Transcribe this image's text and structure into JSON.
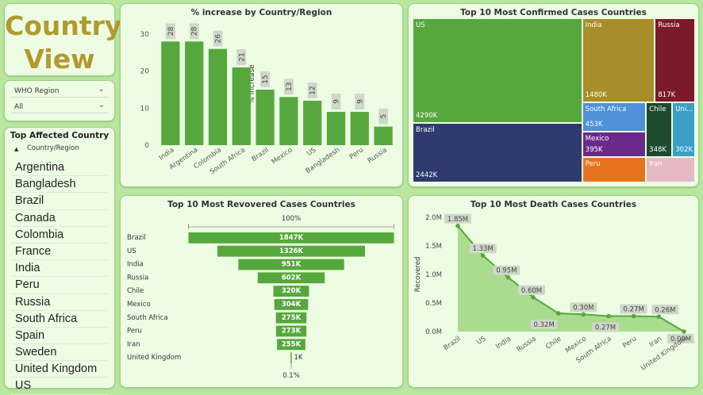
{
  "page_title": [
    "Country",
    "View"
  ],
  "filter": {
    "label": "WHO Region",
    "value": "All"
  },
  "country_list": {
    "title": "Top Affected Country",
    "column": "Country/Region",
    "items": [
      "Argentina",
      "Bangladesh",
      "Brazil",
      "Canada",
      "Colombia",
      "France",
      "India",
      "Peru",
      "Russia",
      "South Africa",
      "Spain",
      "Sweden",
      "United Kingdom",
      "US"
    ]
  },
  "colors": {
    "background": "#b9e7a0",
    "card": "#edfde4",
    "bar_green": "#56a83c",
    "title_gold": "#b39a2e",
    "data_label_bg": "#cfd8c8"
  },
  "chart_data": [
    {
      "type": "bar",
      "title": "% increase by Country/Region",
      "ylabel": "% increase",
      "categories": [
        "India",
        "Argentina",
        "Colombia",
        "South Africa",
        "Brazil",
        "Mexico",
        "US",
        "Bangladesh",
        "Peru",
        "Russia"
      ],
      "values": [
        28,
        28,
        26,
        21,
        15,
        13,
        12,
        9,
        9,
        5
      ],
      "ylim": [
        0,
        33
      ],
      "yticks": [
        0,
        10,
        20,
        30
      ],
      "grid": false
    },
    {
      "type": "treemap",
      "title": "Top 10 Most Confirmed Cases Countries",
      "cells": [
        {
          "name": "US",
          "label": "4290K",
          "value": 4290,
          "color": "#56a83c"
        },
        {
          "name": "Brazil",
          "label": "2442K",
          "value": 2442,
          "color": "#2f3a6e"
        },
        {
          "name": "India",
          "label": "1480K",
          "value": 1480,
          "color": "#a88e28"
        },
        {
          "name": "Russia",
          "label": "817K",
          "value": 817,
          "color": "#7a1a2a"
        },
        {
          "name": "South Africa",
          "label": "453K",
          "value": 453,
          "color": "#4f90d6"
        },
        {
          "name": "Mexico",
          "label": "395K",
          "value": 395,
          "color": "#6a2a8a"
        },
        {
          "name": "Peru",
          "label": "",
          "value": 389,
          "color": "#e8731e"
        },
        {
          "name": "Chile",
          "label": "348K",
          "value": 348,
          "color": "#1f4a2f"
        },
        {
          "name": "Uni...",
          "label": "302K",
          "value": 302,
          "color": "#3b9fc4"
        },
        {
          "name": "Iran",
          "label": "",
          "value": 300,
          "color": "#e6b9c4"
        }
      ]
    },
    {
      "type": "funnel",
      "title": "Top 10 Most Revovered Cases Countries",
      "top_label": "100%",
      "bottom_label": "0.1%",
      "categories": [
        "Brazil",
        "US",
        "India",
        "Russia",
        "Chile",
        "Mexico",
        "South Africa",
        "Peru",
        "Iran",
        "United Kingdom"
      ],
      "values": [
        1847,
        1326,
        951,
        602,
        320,
        304,
        275,
        273,
        255,
        1
      ],
      "labels": [
        "1847K",
        "1326K",
        "951K",
        "602K",
        "320K",
        "304K",
        "275K",
        "273K",
        "255K",
        "1K"
      ]
    },
    {
      "type": "area",
      "title": "Top 10 Most Death Cases Countries",
      "ylabel": "Recovered",
      "categories": [
        "Brazil",
        "US",
        "India",
        "Russia",
        "Chile",
        "Mexico",
        "South Africa",
        "Peru",
        "Iran",
        "United Kingdom"
      ],
      "values": [
        1.85,
        1.33,
        0.95,
        0.6,
        0.32,
        0.3,
        0.27,
        0.27,
        0.26,
        0.0
      ],
      "labels": [
        "1.85M",
        "1.33M",
        "0.95M",
        "0.60M",
        "0.32M",
        "0.30M",
        "0.27M",
        "0.27M",
        "0.26M",
        "0.00M"
      ],
      "ylim": [
        0,
        2
      ],
      "ytick_labels": [
        "0.0M",
        "0.5M",
        "1.0M",
        "1.5M",
        "2.0M"
      ],
      "grid": false
    }
  ]
}
